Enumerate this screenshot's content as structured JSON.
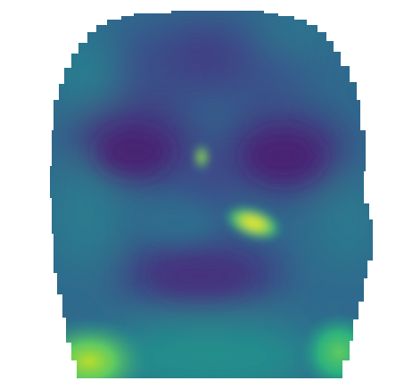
{
  "image": {
    "subject": "face-heatmap",
    "colormap": "viridis",
    "background": "#ffffff",
    "palette": {
      "darkest": "#440154",
      "dark": "#3b3f85",
      "mid_blue": "#2c5f8a",
      "teal": "#21908c",
      "green": "#3fbc73",
      "yellow_green": "#a6d94a",
      "yellow": "#fde725"
    },
    "regions": [
      {
        "name": "forehead",
        "level": 0.25
      },
      {
        "name": "left-eye-socket",
        "level": 0.08
      },
      {
        "name": "right-eye-socket",
        "level": 0.08
      },
      {
        "name": "nose-bridge-hotspot",
        "level": 0.85
      },
      {
        "name": "nose-tip-hotspot",
        "level": 1.0
      },
      {
        "name": "cheeks",
        "level": 0.4
      },
      {
        "name": "mouth",
        "level": 0.1
      },
      {
        "name": "lower-left-jaw",
        "level": 0.85
      },
      {
        "name": "lower-right-jaw",
        "level": 0.6
      }
    ]
  }
}
